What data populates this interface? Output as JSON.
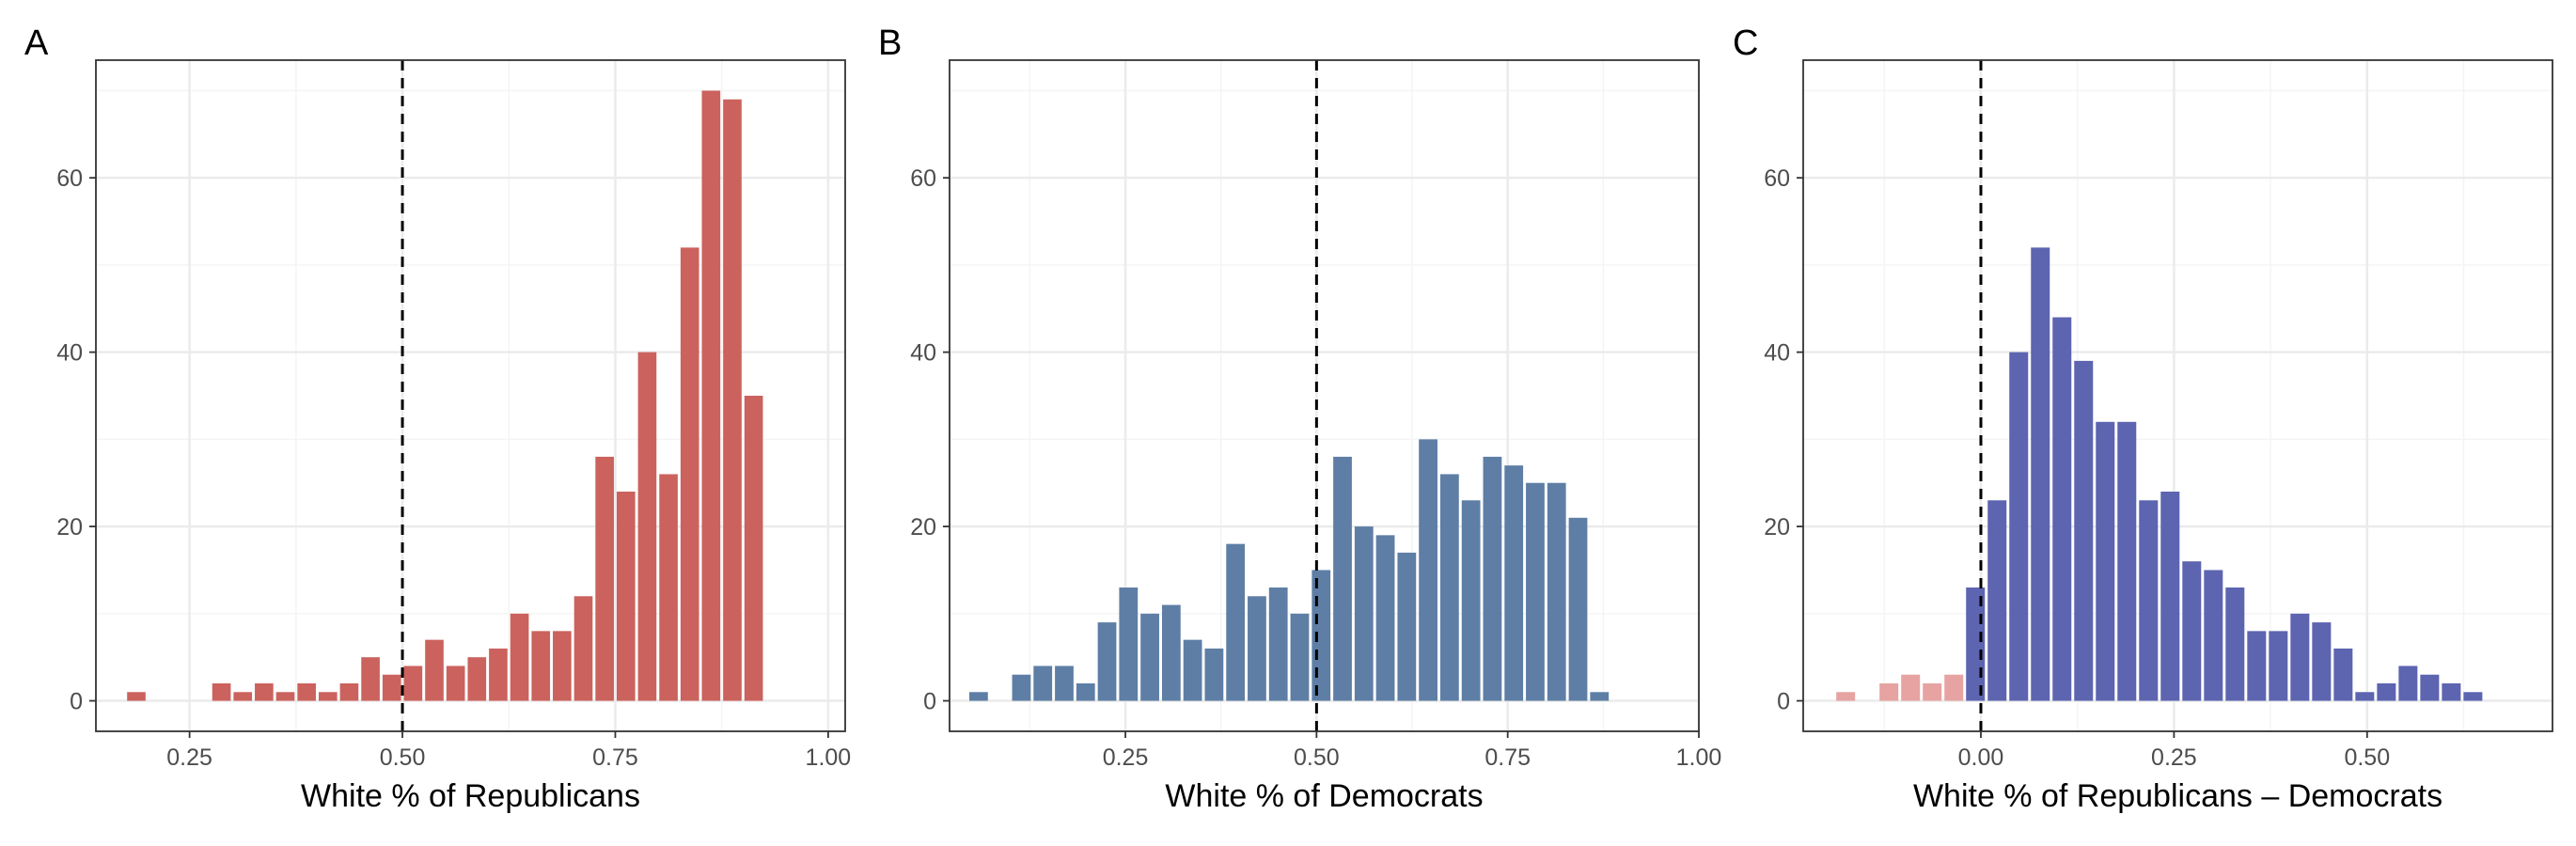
{
  "figure": {
    "colors": {
      "republicans": "#CB625D",
      "democrats": "#5E7EA5",
      "difference": "#5D64B0",
      "difference_negative": "#E6A3A1",
      "grid_major": "#EBEBEB",
      "grid_minor": "#F4F4F4",
      "reference_line": "#000000"
    }
  },
  "chart_data": [
    {
      "panel": "A",
      "type": "bar",
      "title": "",
      "xlabel": "White % of Republicans",
      "ylabel": "",
      "xlim": [
        0.14,
        1.02
      ],
      "ylim": [
        -3.5,
        73.5
      ],
      "xticks": [
        0.25,
        0.5,
        0.75,
        1.0
      ],
      "xtick_labels": [
        "0.25",
        "0.50",
        "0.75",
        "1.00"
      ],
      "yticks": [
        0,
        20,
        40,
        60
      ],
      "ytick_labels": [
        "0",
        "20",
        "40",
        "60"
      ],
      "grid": true,
      "reference_line_x": 0.5,
      "bin_width": 0.025,
      "bins": [
        {
          "x": 0.1875,
          "value": 1
        },
        {
          "x": 0.2875,
          "value": 2
        },
        {
          "x": 0.3125,
          "value": 1
        },
        {
          "x": 0.3375,
          "value": 2
        },
        {
          "x": 0.3625,
          "value": 1
        },
        {
          "x": 0.3875,
          "value": 2
        },
        {
          "x": 0.4125,
          "value": 1
        },
        {
          "x": 0.4375,
          "value": 2
        },
        {
          "x": 0.4625,
          "value": 5
        },
        {
          "x": 0.4875,
          "value": 3
        },
        {
          "x": 0.5125,
          "value": 4
        },
        {
          "x": 0.5375,
          "value": 7
        },
        {
          "x": 0.5625,
          "value": 4
        },
        {
          "x": 0.5875,
          "value": 5
        },
        {
          "x": 0.6125,
          "value": 6
        },
        {
          "x": 0.6375,
          "value": 10
        },
        {
          "x": 0.6625,
          "value": 8
        },
        {
          "x": 0.6875,
          "value": 8
        },
        {
          "x": 0.7125,
          "value": 12
        },
        {
          "x": 0.7375,
          "value": 28
        },
        {
          "x": 0.7625,
          "value": 24
        },
        {
          "x": 0.7875,
          "value": 40
        },
        {
          "x": 0.8125,
          "value": 26
        },
        {
          "x": 0.8375,
          "value": 52
        },
        {
          "x": 0.8625,
          "value": 70
        },
        {
          "x": 0.8875,
          "value": 69
        },
        {
          "x": 0.9125,
          "value": 35
        }
      ]
    },
    {
      "panel": "B",
      "type": "bar",
      "title": "",
      "xlabel": "White % of Democrats",
      "ylabel": "",
      "xlim": [
        0.02,
        1.0
      ],
      "ylim": [
        -3.5,
        73.5
      ],
      "xticks": [
        0.25,
        0.5,
        0.75,
        1.0
      ],
      "xtick_labels": [
        "0.25",
        "0.50",
        "0.75",
        "1.00"
      ],
      "yticks": [
        0,
        20,
        40,
        60
      ],
      "ytick_labels": [
        "0",
        "20",
        "40",
        "60"
      ],
      "grid": true,
      "reference_line_x": 0.5,
      "bin_width": 0.028,
      "bins": [
        {
          "x": 0.058,
          "value": 1
        },
        {
          "x": 0.114,
          "value": 3
        },
        {
          "x": 0.142,
          "value": 4
        },
        {
          "x": 0.17,
          "value": 4
        },
        {
          "x": 0.198,
          "value": 2
        },
        {
          "x": 0.226,
          "value": 9
        },
        {
          "x": 0.254,
          "value": 13
        },
        {
          "x": 0.282,
          "value": 10
        },
        {
          "x": 0.31,
          "value": 11
        },
        {
          "x": 0.338,
          "value": 7
        },
        {
          "x": 0.366,
          "value": 6
        },
        {
          "x": 0.394,
          "value": 18
        },
        {
          "x": 0.422,
          "value": 12
        },
        {
          "x": 0.45,
          "value": 13
        },
        {
          "x": 0.478,
          "value": 10
        },
        {
          "x": 0.506,
          "value": 15
        },
        {
          "x": 0.534,
          "value": 28
        },
        {
          "x": 0.562,
          "value": 20
        },
        {
          "x": 0.59,
          "value": 19
        },
        {
          "x": 0.618,
          "value": 17
        },
        {
          "x": 0.646,
          "value": 30
        },
        {
          "x": 0.674,
          "value": 26
        },
        {
          "x": 0.702,
          "value": 23
        },
        {
          "x": 0.73,
          "value": 28
        },
        {
          "x": 0.758,
          "value": 27
        },
        {
          "x": 0.786,
          "value": 25
        },
        {
          "x": 0.814,
          "value": 25
        },
        {
          "x": 0.842,
          "value": 21
        },
        {
          "x": 0.87,
          "value": 1
        }
      ]
    },
    {
      "panel": "C",
      "type": "bar",
      "title": "",
      "xlabel": "White % of Republicans – Democrats",
      "ylabel": "",
      "xlim": [
        -0.23,
        0.74
      ],
      "ylim": [
        -3.5,
        73.5
      ],
      "xticks": [
        0.0,
        0.25,
        0.5
      ],
      "xtick_labels": [
        "0.00",
        "0.25",
        "0.50"
      ],
      "yticks": [
        0,
        20,
        40,
        60
      ],
      "ytick_labels": [
        "0",
        "20",
        "40",
        "60"
      ],
      "grid": true,
      "reference_line_x": 0.0,
      "bin_width": 0.028,
      "bins": [
        {
          "x": -0.175,
          "value": 1,
          "group": "negative"
        },
        {
          "x": -0.119,
          "value": 2,
          "group": "negative"
        },
        {
          "x": -0.091,
          "value": 3,
          "group": "negative"
        },
        {
          "x": -0.063,
          "value": 2,
          "group": "negative"
        },
        {
          "x": -0.035,
          "value": 3,
          "group": "negative"
        },
        {
          "x": -0.007,
          "value": 13,
          "group": "positive"
        },
        {
          "x": 0.021,
          "value": 23,
          "group": "positive"
        },
        {
          "x": 0.049,
          "value": 40,
          "group": "positive"
        },
        {
          "x": 0.077,
          "value": 52,
          "group": "positive"
        },
        {
          "x": 0.105,
          "value": 44,
          "group": "positive"
        },
        {
          "x": 0.133,
          "value": 39,
          "group": "positive"
        },
        {
          "x": 0.161,
          "value": 32,
          "group": "positive"
        },
        {
          "x": 0.189,
          "value": 32,
          "group": "positive"
        },
        {
          "x": 0.217,
          "value": 23,
          "group": "positive"
        },
        {
          "x": 0.245,
          "value": 24,
          "group": "positive"
        },
        {
          "x": 0.273,
          "value": 16,
          "group": "positive"
        },
        {
          "x": 0.301,
          "value": 15,
          "group": "positive"
        },
        {
          "x": 0.329,
          "value": 13,
          "group": "positive"
        },
        {
          "x": 0.357,
          "value": 8,
          "group": "positive"
        },
        {
          "x": 0.385,
          "value": 8,
          "group": "positive"
        },
        {
          "x": 0.413,
          "value": 10,
          "group": "positive"
        },
        {
          "x": 0.441,
          "value": 9,
          "group": "positive"
        },
        {
          "x": 0.469,
          "value": 6,
          "group": "positive"
        },
        {
          "x": 0.497,
          "value": 1,
          "group": "positive"
        },
        {
          "x": 0.525,
          "value": 2,
          "group": "positive"
        },
        {
          "x": 0.553,
          "value": 4,
          "group": "positive"
        },
        {
          "x": 0.581,
          "value": 3,
          "group": "positive"
        },
        {
          "x": 0.609,
          "value": 2,
          "group": "positive"
        },
        {
          "x": 0.637,
          "value": 1,
          "group": "positive"
        }
      ]
    }
  ]
}
